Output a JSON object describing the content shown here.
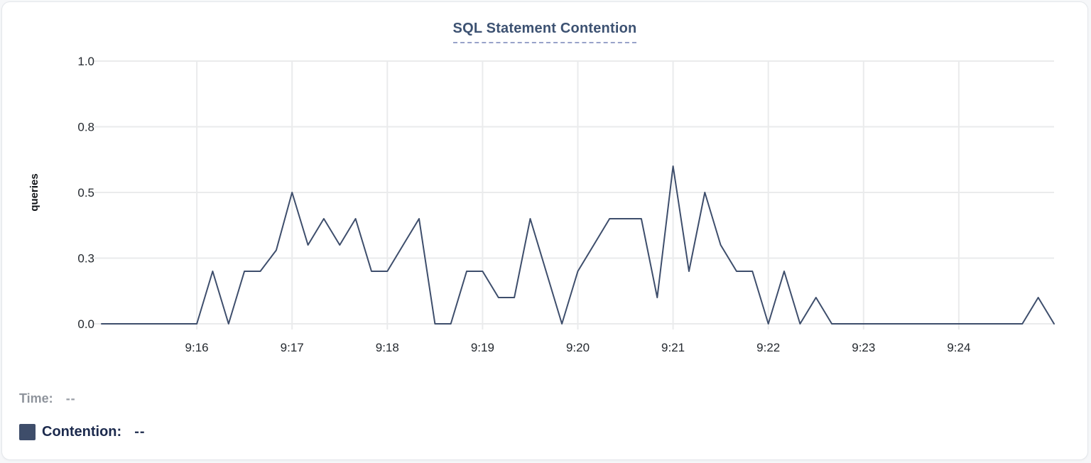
{
  "header": {
    "title": "SQL Statement Contention"
  },
  "chart_data": {
    "type": "line",
    "title": "SQL Statement Contention",
    "xlabel": "",
    "ylabel": "queries",
    "ylim": [
      0,
      1.0
    ],
    "grid": true,
    "legend_position": "bottom-left",
    "y_ticks": [
      {
        "value": 0.0,
        "label": "0.0"
      },
      {
        "value": 0.25,
        "label": "0.3"
      },
      {
        "value": 0.5,
        "label": "0.5"
      },
      {
        "value": 0.75,
        "label": "0.8"
      },
      {
        "value": 1.0,
        "label": "1.0"
      }
    ],
    "x_ticks": [
      "9:16",
      "9:17",
      "9:18",
      "9:19",
      "9:20",
      "9:21",
      "9:22",
      "9:23",
      "9:24"
    ],
    "x": [
      "9:15:00",
      "9:15:10",
      "9:15:20",
      "9:15:30",
      "9:15:40",
      "9:15:50",
      "9:16:00",
      "9:16:10",
      "9:16:20",
      "9:16:30",
      "9:16:40",
      "9:16:50",
      "9:17:00",
      "9:17:10",
      "9:17:20",
      "9:17:30",
      "9:17:40",
      "9:17:50",
      "9:18:00",
      "9:18:10",
      "9:18:20",
      "9:18:30",
      "9:18:40",
      "9:18:50",
      "9:19:00",
      "9:19:10",
      "9:19:20",
      "9:19:30",
      "9:19:40",
      "9:19:50",
      "9:20:00",
      "9:20:10",
      "9:20:20",
      "9:20:30",
      "9:20:40",
      "9:20:50",
      "9:21:00",
      "9:21:10",
      "9:21:20",
      "9:21:30",
      "9:21:40",
      "9:21:50",
      "9:22:00",
      "9:22:10",
      "9:22:20",
      "9:22:30",
      "9:22:40",
      "9:22:50",
      "9:23:00",
      "9:23:10",
      "9:23:20",
      "9:23:30",
      "9:23:40",
      "9:23:50",
      "9:24:00",
      "9:24:10",
      "9:24:20",
      "9:24:30",
      "9:24:40",
      "9:24:50",
      "9:25:00"
    ],
    "series": [
      {
        "name": "Contention",
        "color": "#3e4e6c",
        "values": [
          0,
          0,
          0,
          0,
          0,
          0,
          0,
          0.2,
          0,
          0.2,
          0.2,
          0.28,
          0.5,
          0.3,
          0.4,
          0.3,
          0.4,
          0.2,
          0.2,
          0.3,
          0.4,
          0,
          0,
          0.2,
          0.2,
          0.1,
          0.1,
          0.4,
          0.2,
          0,
          0.2,
          0.3,
          0.4,
          0.4,
          0.4,
          0.1,
          0.6,
          0.2,
          0.5,
          0.3,
          0.2,
          0.2,
          0,
          0.2,
          0,
          0.1,
          0,
          0,
          0,
          0,
          0,
          0,
          0,
          0,
          0,
          0,
          0,
          0,
          0,
          0.1,
          0
        ]
      }
    ],
    "colors": {
      "line": "#3e4e6c",
      "gridline": "#eaebec",
      "tick_text": "#24292f",
      "axis_label_text": "#111418"
    }
  },
  "legend": {
    "time_label": "Time:",
    "time_value": "--",
    "series_label": "Contention:",
    "series_value": "--",
    "swatch_color": "#3e4d6a"
  }
}
